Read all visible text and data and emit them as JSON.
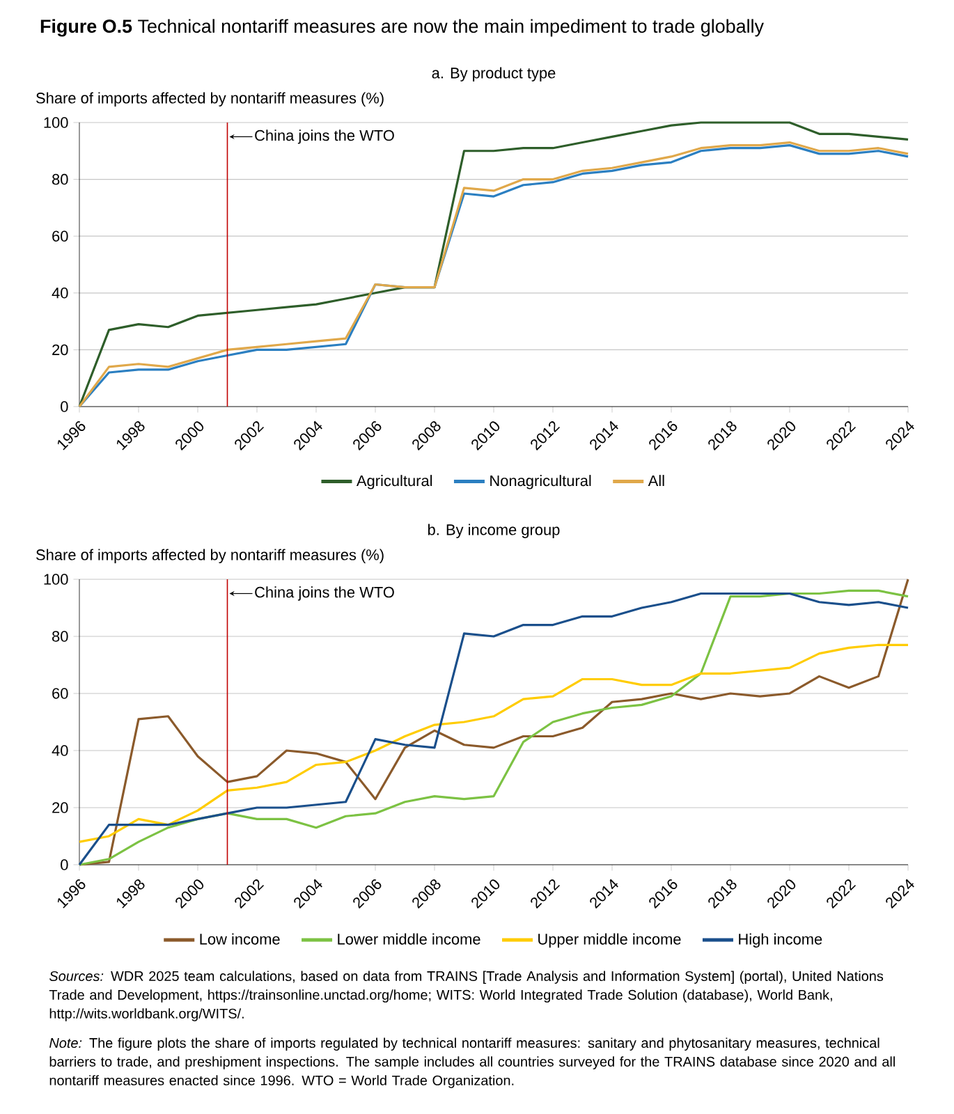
{
  "chart_data": [
    {
      "type": "line",
      "title": "**Figure O.5** Technical nontariff measures are now the main impediment to trade globally",
      "subtitle": "a. By product type",
      "ylabel": "Share of imports affected by nontariff measures (%)",
      "x": [
        1996,
        1997,
        1998,
        1999,
        2000,
        2001,
        2002,
        2003,
        2004,
        2005,
        2006,
        2007,
        2008,
        2009,
        2010,
        2011,
        2012,
        2013,
        2014,
        2015,
        2016,
        2017,
        2018,
        2019,
        2020,
        2021,
        2022,
        2023,
        2024
      ],
      "series": [
        {
          "name": "Agricultural",
          "color": "#2e5e2a",
          "values": [
            0,
            27,
            29,
            28,
            32,
            33,
            34,
            35,
            36,
            38,
            40,
            42,
            42,
            90,
            90,
            91,
            91,
            93,
            95,
            97,
            99,
            100,
            100,
            100,
            100,
            96,
            96,
            95,
            94
          ]
        },
        {
          "name": "Nonagricultural",
          "color": "#2b7fc1",
          "values": [
            0,
            12,
            13,
            13,
            16,
            18,
            20,
            20,
            21,
            22,
            43,
            42,
            42,
            75,
            74,
            78,
            79,
            82,
            83,
            85,
            86,
            90,
            91,
            91,
            92,
            89,
            89,
            90,
            88
          ]
        },
        {
          "name": "All",
          "color": "#e0a84a",
          "values": [
            0,
            14,
            15,
            14,
            17,
            20,
            21,
            22,
            23,
            24,
            43,
            42,
            42,
            77,
            76,
            80,
            80,
            83,
            84,
            86,
            88,
            91,
            92,
            92,
            93,
            90,
            90,
            91,
            89
          ]
        }
      ],
      "xlim": [
        1996,
        2024
      ],
      "xticks": [
        1996,
        1998,
        2000,
        2002,
        2004,
        2006,
        2008,
        2010,
        2012,
        2014,
        2016,
        2018,
        2020,
        2022,
        2024
      ],
      "ylim": [
        0,
        100
      ],
      "yticks": [
        0,
        20,
        40,
        60,
        80,
        100
      ],
      "grid": "y",
      "legend": "bottom",
      "line_style": "solid",
      "ref_lines": [
        {
          "axis": "x",
          "value": 2001,
          "label": "China joins the WTO",
          "color": "#c00000"
        }
      ]
    },
    {
      "type": "line",
      "subtitle": "b. By income group",
      "ylabel": "Share of imports affected by nontariff measures (%)",
      "x": [
        1996,
        1997,
        1998,
        1999,
        2000,
        2001,
        2002,
        2003,
        2004,
        2005,
        2006,
        2007,
        2008,
        2009,
        2010,
        2011,
        2012,
        2013,
        2014,
        2015,
        2016,
        2017,
        2018,
        2019,
        2020,
        2021,
        2022,
        2023,
        2024
      ],
      "series": [
        {
          "name": "Low income",
          "color": "#8b5a2b",
          "values": [
            0,
            1,
            51,
            52,
            38,
            29,
            31,
            40,
            39,
            36,
            23,
            41,
            47,
            42,
            41,
            45,
            45,
            48,
            57,
            58,
            60,
            58,
            60,
            59,
            60,
            66,
            62,
            66,
            100
          ]
        },
        {
          "name": "Lower middle income",
          "color": "#7cc243",
          "values": [
            0,
            2,
            8,
            13,
            16,
            18,
            16,
            16,
            13,
            17,
            18,
            22,
            24,
            23,
            24,
            43,
            50,
            53,
            55,
            56,
            59,
            67,
            94,
            94,
            95,
            95,
            96,
            96,
            94
          ]
        },
        {
          "name": "Upper middle income",
          "color": "#ffcc00",
          "values": [
            8,
            10,
            16,
            14,
            19,
            26,
            27,
            29,
            35,
            36,
            40,
            45,
            49,
            50,
            52,
            58,
            59,
            65,
            65,
            63,
            63,
            67,
            67,
            68,
            69,
            74,
            76,
            77,
            77
          ]
        },
        {
          "name": "High income",
          "color": "#1a4f8b",
          "values": [
            0,
            14,
            14,
            14,
            16,
            18,
            20,
            20,
            21,
            22,
            44,
            42,
            41,
            81,
            80,
            84,
            84,
            87,
            87,
            90,
            92,
            95,
            95,
            95,
            95,
            92,
            91,
            92,
            90
          ]
        }
      ],
      "xlim": [
        1996,
        2024
      ],
      "xticks": [
        1996,
        1998,
        2000,
        2002,
        2004,
        2006,
        2008,
        2010,
        2012,
        2014,
        2016,
        2018,
        2020,
        2022,
        2024
      ],
      "ylim": [
        0,
        100
      ],
      "yticks": [
        0,
        20,
        40,
        60,
        80,
        100
      ],
      "grid": "y",
      "legend": "bottom",
      "line_style": "solid",
      "ref_lines": [
        {
          "axis": "x",
          "value": 2001,
          "label": "China joins the WTO",
          "color": "#c00000"
        }
      ],
      "annotations": [
        "*Sources:* WDR 2025 team calculations, based on data from TRAINS [Trade Analysis and Information System] (portal), United Nations Trade and Development, https://trainsonline.unctad.org/home; WITS: World Integrated Trade Solution (database), World Bank, http://wits.worldbank.org/WITS/.",
        "*Note:* The figure plots the share of imports regulated by technical nontariff measures: sanitary and phytosanitary measures, technical barriers to trade, and preshipment inspections. The sample includes all countries surveyed for the TRAINS database since 2020 and all nontariff measures enacted since 1996. WTO = World Trade Organization."
      ]
    }
  ]
}
